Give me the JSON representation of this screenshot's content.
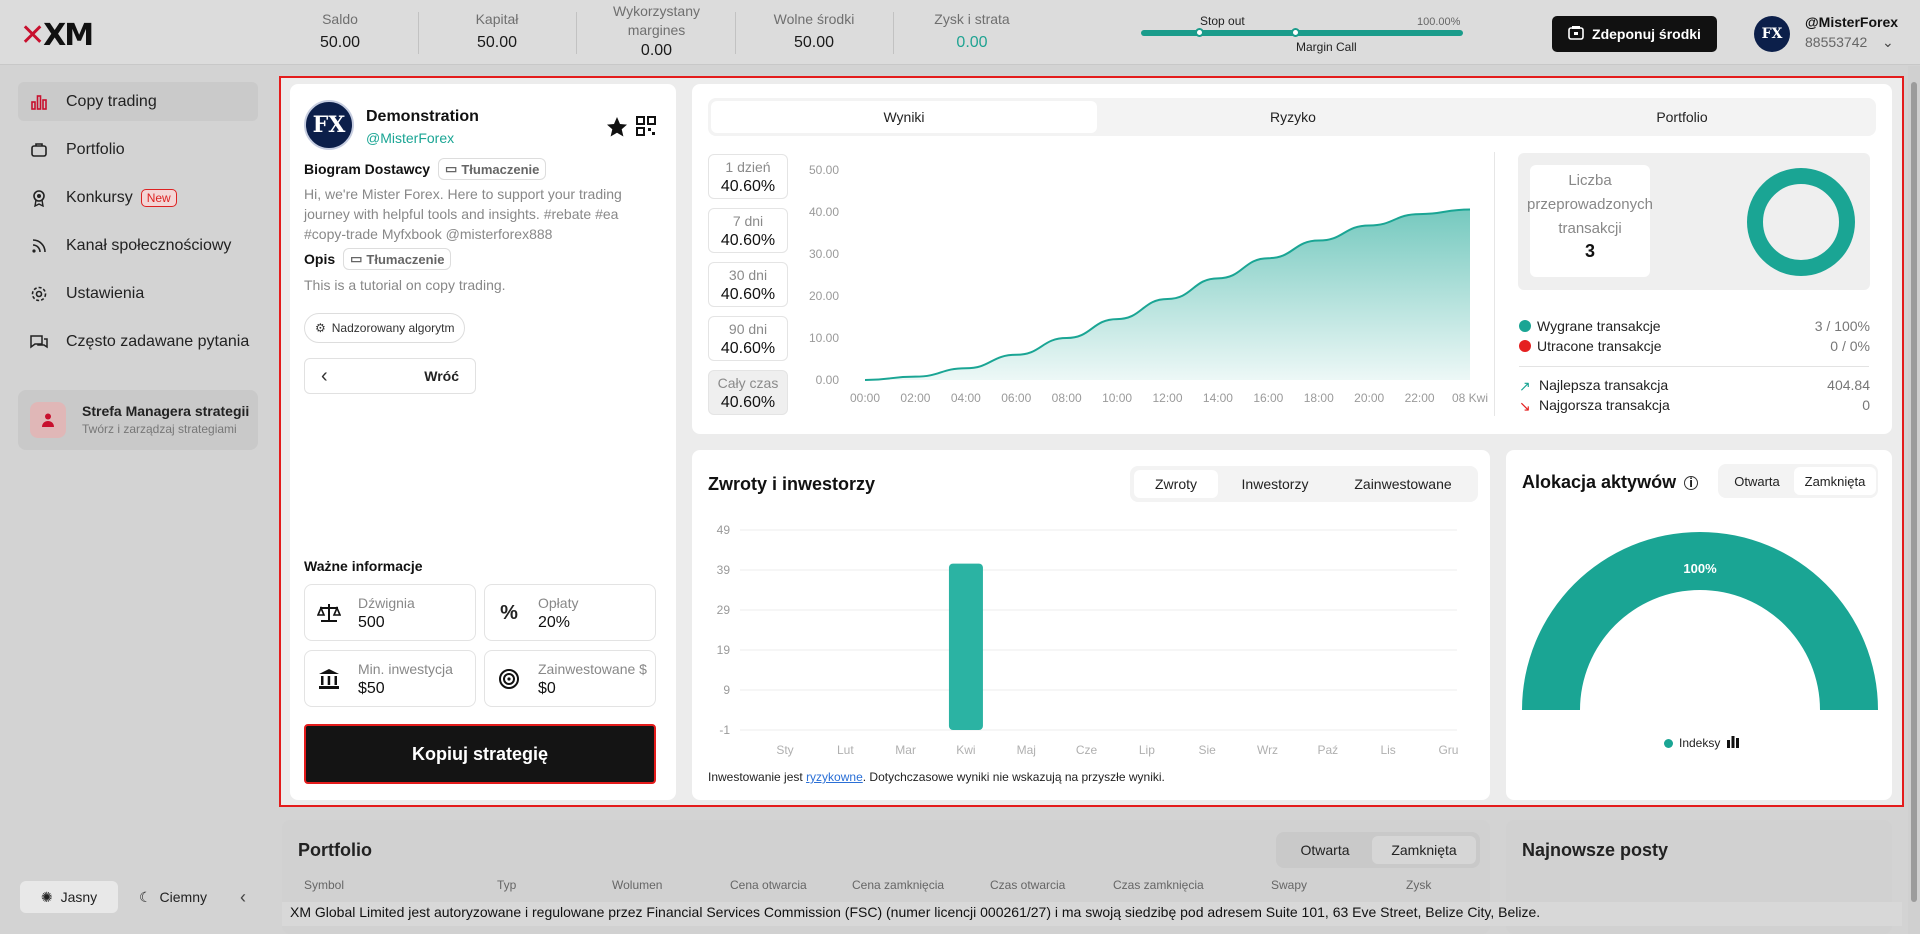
{
  "header": {
    "logo": "XM",
    "stats": [
      {
        "label": "Saldo",
        "value": "50.00"
      },
      {
        "label": "Kapitał",
        "value": "50.00"
      },
      {
        "label": "Wykorzystany margines",
        "value": "0.00"
      },
      {
        "label": "Wolne środki",
        "value": "50.00"
      },
      {
        "label": "Zysk i strata",
        "value": "0.00"
      }
    ],
    "margin": {
      "stop_out": "Stop out",
      "margin_call": "Margin Call",
      "percent": "100.00%",
      "level": 1.0
    },
    "deposit_label": "Zdeponuj środki",
    "user": {
      "name": "@MisterForex",
      "account": "88553742",
      "avatar": "FX"
    }
  },
  "sidebar": {
    "items": [
      {
        "label": "Copy trading",
        "icon": "bar-chart-icon"
      },
      {
        "label": "Portfolio",
        "icon": "briefcase-icon"
      },
      {
        "label": "Konkursy",
        "icon": "award-icon",
        "badge": "New"
      },
      {
        "label": "Kanał społecznościowy",
        "icon": "rss-icon"
      },
      {
        "label": "Ustawienia",
        "icon": "gear-icon"
      },
      {
        "label": "Często zadawane pytania",
        "icon": "chat-icon"
      }
    ],
    "manager": {
      "title": "Strefa Managera strategii",
      "subtitle": "Twórz i zarządzaj strategiami"
    },
    "theme": {
      "light": "Jasny",
      "dark": "Ciemny"
    }
  },
  "provider": {
    "name": "Demonstration",
    "handle": "@MisterForex",
    "avatar": "FX",
    "bio_heading": "Biogram Dostawcy",
    "translate": "Tłumaczenie",
    "bio": "Hi, we're Mister Forex. Here to support your trading journey with helpful tools and insights. #rebate #ea #copy-trade Myfxbook @misterforex888",
    "desc_heading": "Opis",
    "desc": "This is a tutorial on copy trading.",
    "algo_tag": "Nadzorowany algorytm",
    "back_label": "Wróć",
    "important_heading": "Ważne informacje",
    "info": [
      {
        "label": "Dźwignia",
        "value": "500"
      },
      {
        "label": "Opłaty",
        "value": "20%"
      },
      {
        "label": "Min. inwestycja",
        "value": "$50"
      },
      {
        "label": "Zainwestowane $",
        "value": "$0"
      }
    ],
    "copy_button": "Kopiuj strategię"
  },
  "results": {
    "tabs": [
      "Wyniki",
      "Ryzyko",
      "Portfolio"
    ],
    "periods": [
      {
        "label": "1 dzień",
        "value": "40.60%"
      },
      {
        "label": "7 dni",
        "value": "40.60%"
      },
      {
        "label": "30 dni",
        "value": "40.60%"
      },
      {
        "label": "90 dni",
        "value": "40.60%"
      },
      {
        "label": "Cały czas",
        "value": "40.60%"
      }
    ],
    "trades_label": "Liczba przeprowadzonych transakcji",
    "trades_value": "3",
    "won_label": "Wygrane transakcje",
    "won_value": "3 / 100%",
    "lost_label": "Utracone transakcje",
    "lost_value": "0 / 0%",
    "best_label": "Najlepsza transakcja",
    "best_value": "404.84",
    "worst_label": "Najgorsza transakcja",
    "worst_value": "0",
    "colors": {
      "teal": "#1aa594",
      "red": "#e52020"
    }
  },
  "returns": {
    "title": "Zwroty i inwestorzy",
    "tabs": [
      "Zwroty",
      "Inwestorzy",
      "Zainwestowane"
    ],
    "disclaimer_before": "Inwestowanie jest ",
    "disclaimer_link": "ryzykowne",
    "disclaimer_after": ". Dotychczasowe wyniki nie wskazują na przyszłe wyniki."
  },
  "allocation": {
    "title": "Alokacja aktywów",
    "tabs": [
      "Otwarta",
      "Zamknięta"
    ],
    "percent_label": "100%",
    "legend": "Indeksy"
  },
  "portfolio": {
    "title": "Portfolio",
    "tabs": [
      "Otwarta",
      "Zamknięta"
    ],
    "columns": [
      "Symbol",
      "Typ",
      "Wolumen",
      "Cena otwarcia",
      "Cena zamknięcia",
      "Czas otwarcia",
      "Czas zamknięcia",
      "Swapy",
      "Zysk"
    ]
  },
  "posts": {
    "title": "Najnowsze posty"
  },
  "footer": "XM Global Limited jest autoryzowane i regulowane przez Financial Services Commission (FSC) (numer licencji 000261/27) i ma swoją siedzibę pod adresem Suite 101, 63 Eve Street, Belize City, Belize.",
  "chart_data": [
    {
      "type": "area",
      "x": [
        "00:00",
        "02:00",
        "04:00",
        "06:00",
        "08:00",
        "10:00",
        "12:00",
        "14:00",
        "16:00",
        "18:00",
        "20:00",
        "22:00",
        "08 Kwi"
      ],
      "values": [
        0,
        0.8,
        2.8,
        6.0,
        10.0,
        14.5,
        19.3,
        24.2,
        29.0,
        33.2,
        36.8,
        39.5,
        40.6
      ],
      "yticks": [
        "0.00",
        "10.00",
        "20.00",
        "30.00",
        "40.00",
        "50.00"
      ],
      "ylim": [
        0,
        50
      ]
    },
    {
      "type": "bar",
      "categories": [
        "Sty",
        "Lut",
        "Mar",
        "Kwi",
        "Maj",
        "Cze",
        "Lip",
        "Sie",
        "Wrz",
        "Paź",
        "Lis",
        "Gru"
      ],
      "values": [
        0,
        0,
        0,
        40.6,
        0,
        0,
        0,
        0,
        0,
        0,
        0,
        0
      ],
      "yticks": [
        "-1",
        "9",
        "19",
        "29",
        "39",
        "49"
      ],
      "ylim": [
        -1,
        49
      ]
    },
    {
      "type": "pie",
      "labels": [
        "Wygrane transakcje",
        "Utracone transakcje"
      ],
      "values": [
        3,
        0
      ]
    },
    {
      "type": "pie",
      "labels": [
        "Indeksy"
      ],
      "values": [
        100
      ]
    }
  ]
}
